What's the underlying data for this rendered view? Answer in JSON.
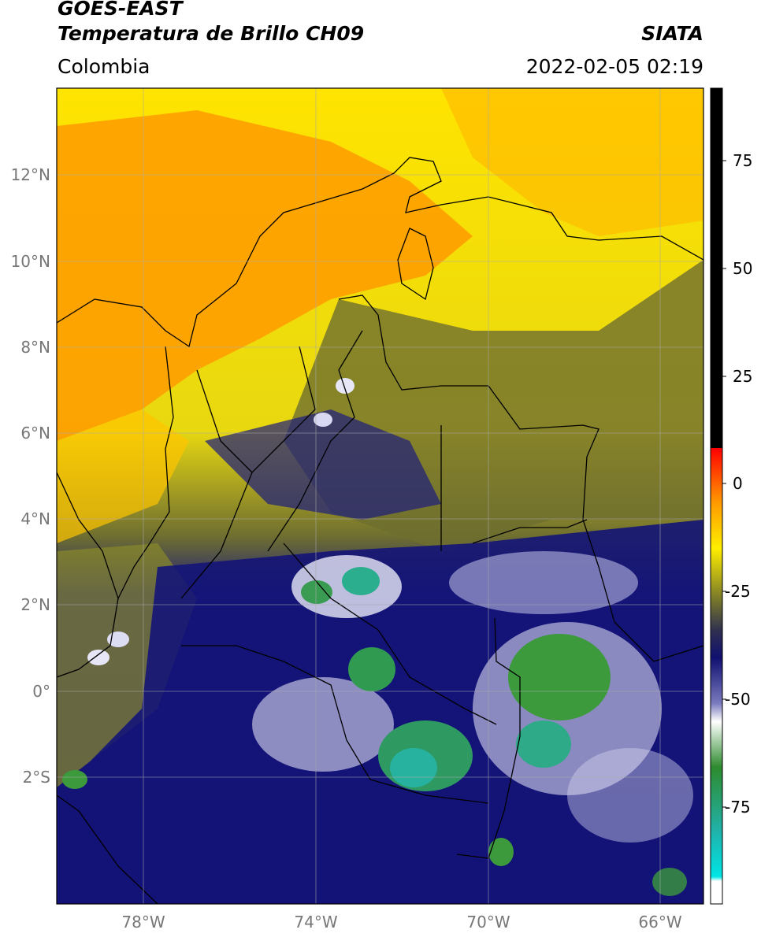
{
  "header": {
    "satellite": "GOES-EAST",
    "product": "Temperatura de Brillo CH09",
    "region": "Colombia",
    "agency": "SIATA",
    "datetime": "2022-02-05 02:19"
  },
  "map": {
    "lat_labels": [
      "12°N",
      "10°N",
      "8°N",
      "6°N",
      "4°N",
      "2°N",
      "0°",
      "2°S"
    ],
    "lon_labels": [
      "78°W",
      "74°W",
      "70°W",
      "66°W"
    ],
    "gridline_color": "#aaaaaa",
    "border_color": "#000000"
  },
  "colorbar": {
    "ticks": [
      "75",
      "50",
      "25",
      "0",
      "-25",
      "-50",
      "-75"
    ],
    "colors": {
      "black": "#000000",
      "red": "#ff0000",
      "orange": "#ff9a00",
      "yellow": "#ffee00",
      "olive": "#7a7a2a",
      "navy": "#101070",
      "white": "#ffffff",
      "green": "#2e8b2e",
      "teal": "#20b2aa",
      "cyan": "#00e5e5"
    }
  }
}
